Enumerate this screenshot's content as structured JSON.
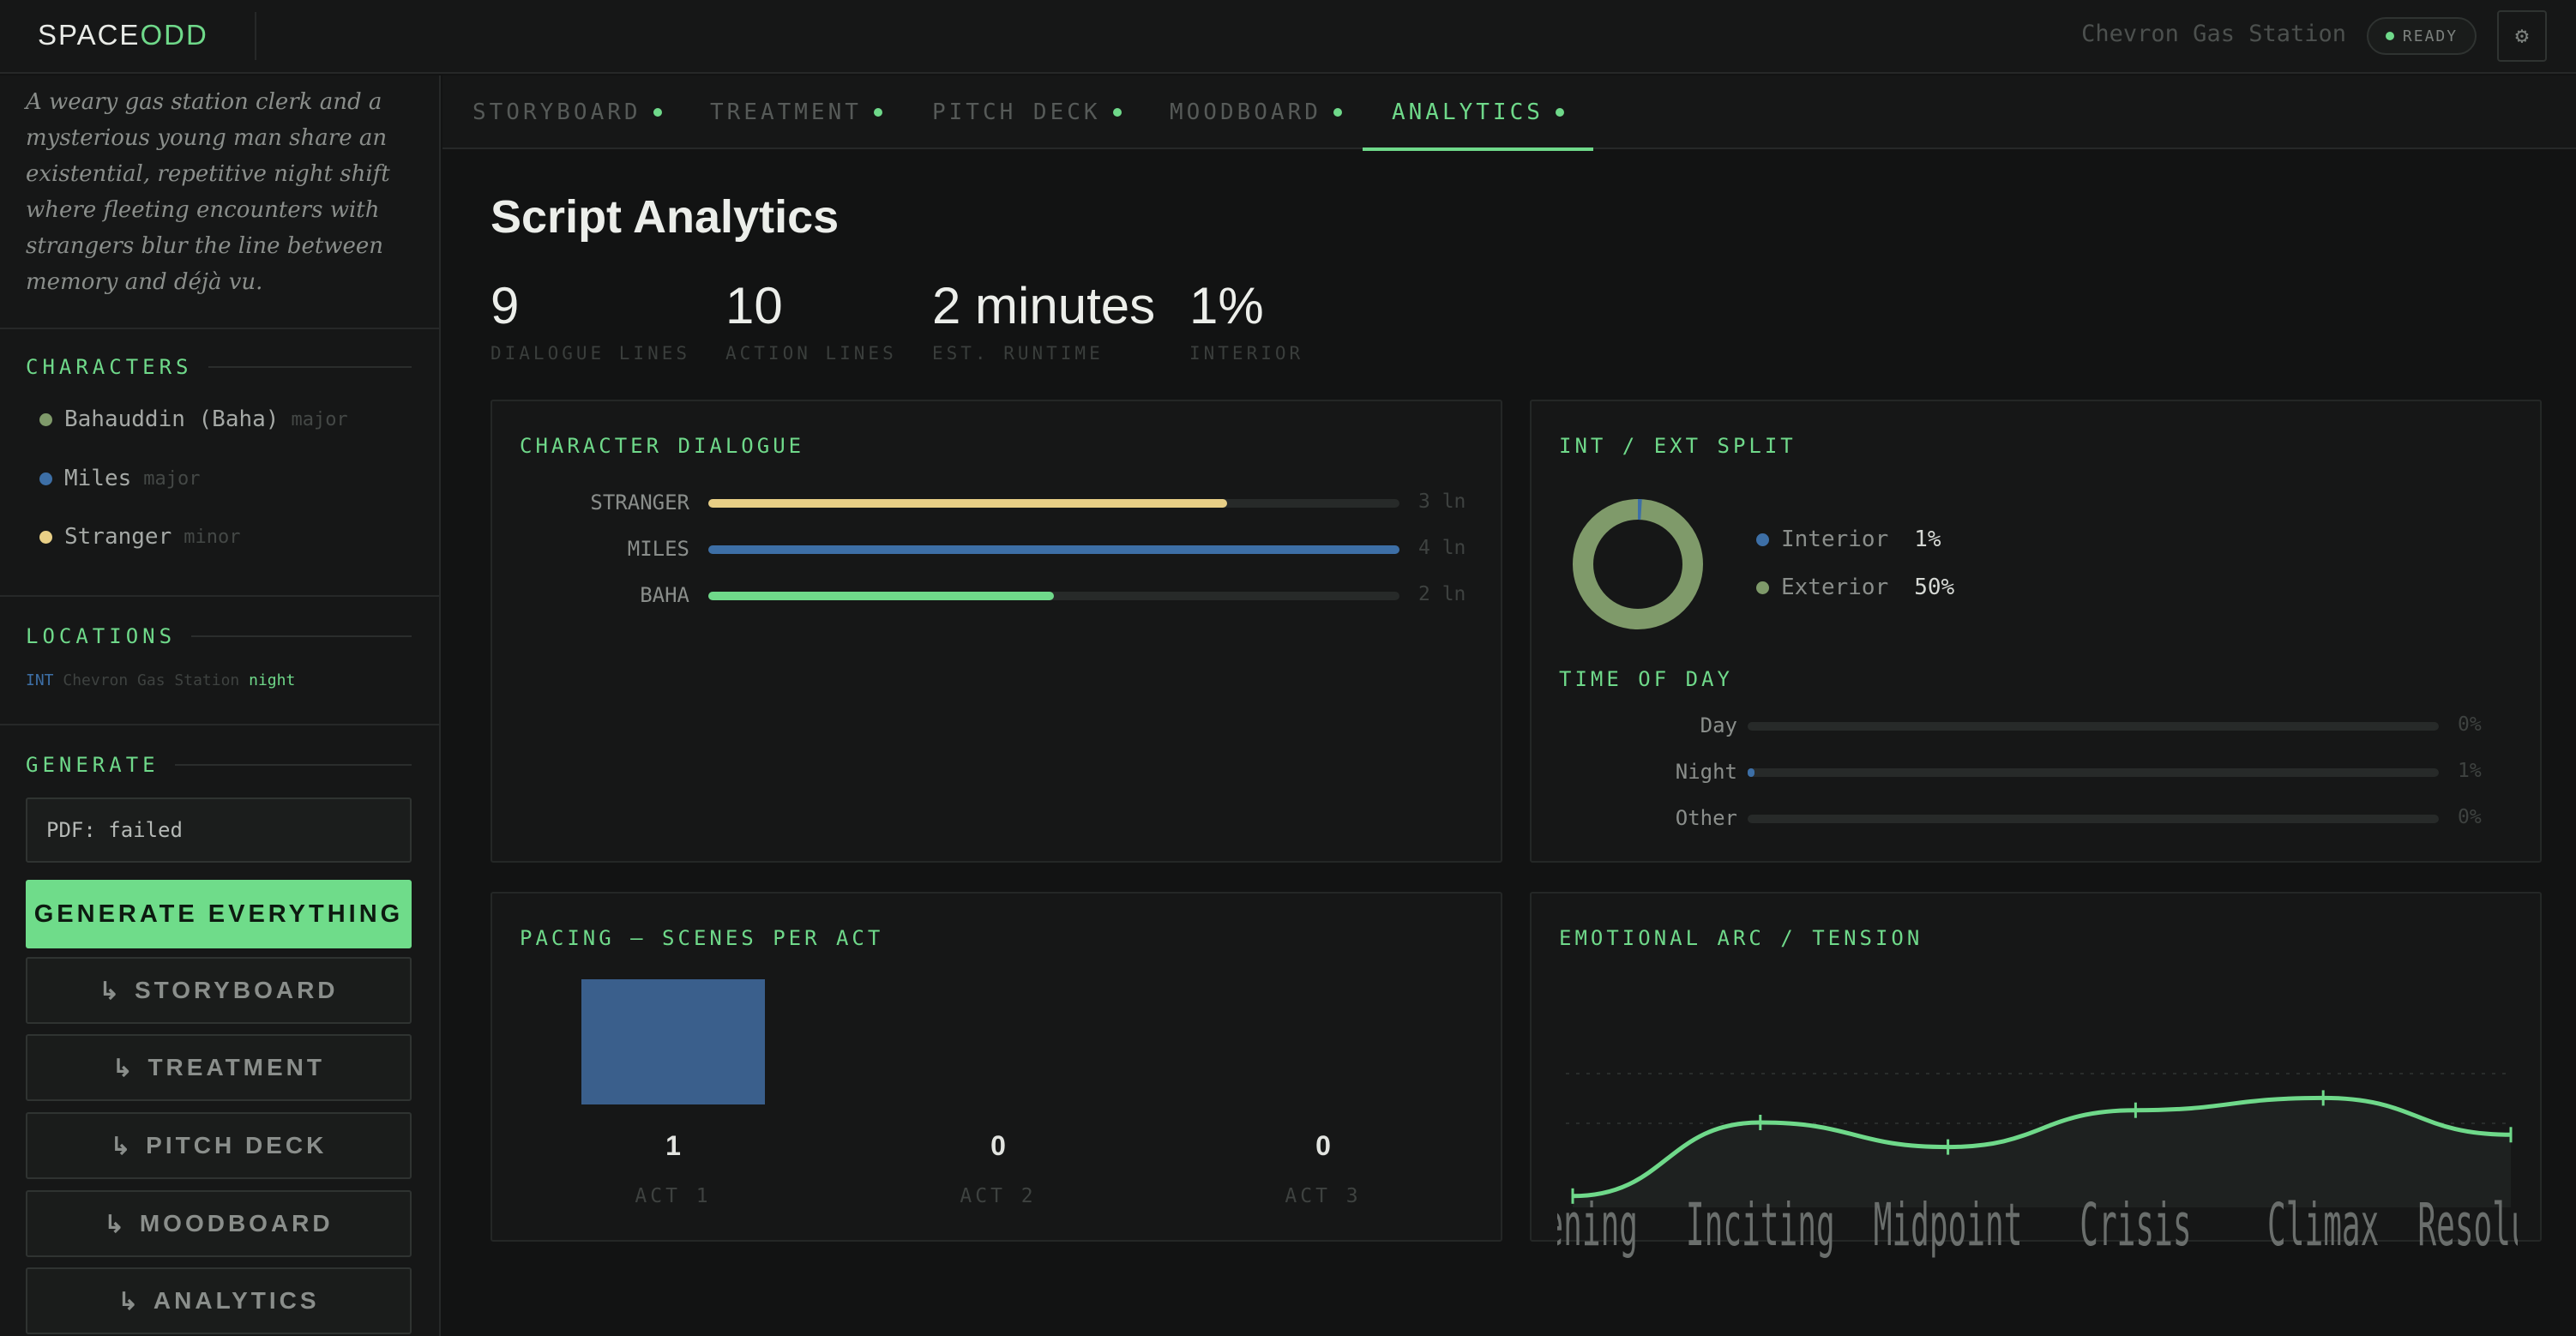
{
  "app": {
    "logo_a": "SPACE",
    "logo_b": "ODD",
    "project": "Chevron Gas Station",
    "status": "READY"
  },
  "sidebar": {
    "logline": "A weary gas station clerk and a mysterious young man share an existential, repetitive night shift where fleeting encounters with strangers blur the line between memory and déjà vu.",
    "characters_title": "CHARACTERS",
    "characters": [
      {
        "name": "Bahauddin (Baha)",
        "role": "major",
        "color": "#7f9a6a"
      },
      {
        "name": "Miles",
        "role": "major",
        "color": "#3d6fa6"
      },
      {
        "name": "Stranger",
        "role": "minor",
        "color": "#e8cf86"
      }
    ],
    "locations_title": "LOCATIONS",
    "location": {
      "type": "INT",
      "name": "Chevron Gas Station",
      "time": "night"
    },
    "generate_title": "GENERATE",
    "pdf_status": "PDF: failed",
    "generate_all": "GENERATE EVERYTHING",
    "generate_items": [
      "STORYBOARD",
      "TREATMENT",
      "PITCH DECK",
      "MOODBOARD",
      "ANALYTICS"
    ]
  },
  "tabs": [
    "STORYBOARD",
    "TREATMENT",
    "PITCH DECK",
    "MOODBOARD",
    "ANALYTICS"
  ],
  "active_tab": "ANALYTICS",
  "main": {
    "title": "Script Analytics",
    "stats": [
      {
        "value": "9",
        "label": "DIALOGUE LINES"
      },
      {
        "value": "10",
        "label": "ACTION LINES"
      },
      {
        "value": "2 minutes",
        "label": "EST. RUNTIME"
      },
      {
        "value": "1%",
        "label": "INTERIOR"
      }
    ]
  },
  "cards": {
    "dialogue_title": "CHARACTER DIALOGUE",
    "split_title": "INT / EXT SPLIT",
    "tod_title": "TIME OF DAY",
    "pacing_title": "PACING — SCENES PER ACT",
    "arc_title": "EMOTIONAL ARC / TENSION"
  },
  "chart_data": [
    {
      "type": "bar",
      "title": "CHARACTER DIALOGUE",
      "categories": [
        "STRANGER",
        "MILES",
        "BAHA"
      ],
      "values": [
        3,
        4,
        2
      ],
      "value_labels": [
        "3 ln",
        "4 ln",
        "2 ln"
      ],
      "fill_fractions": [
        0.75,
        1.0,
        0.5
      ],
      "colors": [
        "#e8cf86",
        "#3d6fa6",
        "#6fd98a"
      ]
    },
    {
      "type": "pie",
      "title": "INT / EXT SPLIT",
      "categories": [
        "Interior",
        "Exterior"
      ],
      "values": [
        1,
        50
      ],
      "value_labels": [
        "1%",
        "50%"
      ],
      "colors": [
        "#3d6fa6",
        "#7f9a6a"
      ]
    },
    {
      "type": "bar",
      "title": "TIME OF DAY",
      "categories": [
        "Day",
        "Night",
        "Other"
      ],
      "values": [
        0,
        1,
        0
      ],
      "value_labels": [
        "0%",
        "1%",
        "0%"
      ]
    },
    {
      "type": "bar",
      "title": "PACING — SCENES PER ACT",
      "categories": [
        "ACT 1",
        "ACT 2",
        "ACT 3"
      ],
      "values": [
        1,
        0,
        0
      ]
    },
    {
      "type": "line",
      "title": "EMOTIONAL ARC / TENSION",
      "categories": [
        "Opening",
        "Inciting",
        "Midpoint",
        "Crisis",
        "Climax",
        "Resolution"
      ],
      "values": [
        0.2,
        0.5,
        0.4,
        0.55,
        0.6,
        0.45
      ],
      "ylim": [
        0,
        1
      ]
    }
  ]
}
